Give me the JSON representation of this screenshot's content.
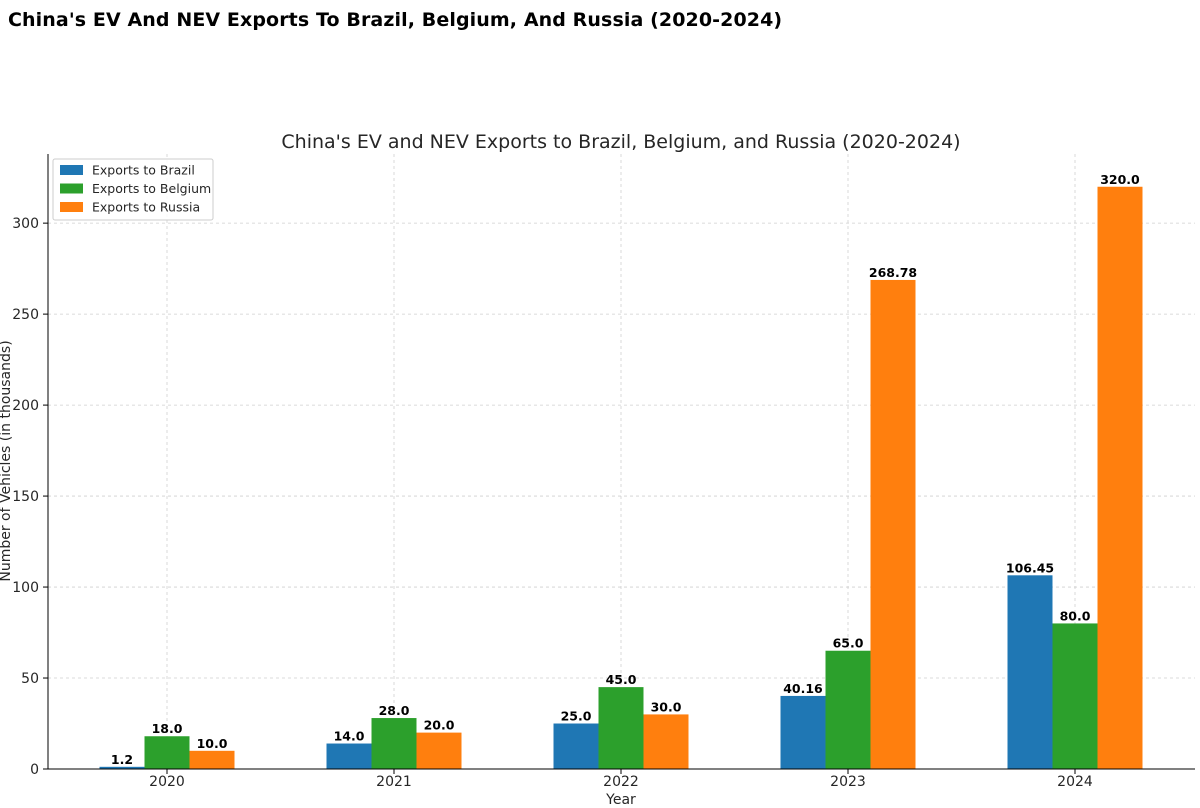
{
  "page": {
    "title": "China's EV And NEV Exports To Brazil, Belgium, And Russia (2020-2024)"
  },
  "chart_data": {
    "type": "bar",
    "title": "China's EV and NEV Exports to Brazil, Belgium, and Russia (2020-2024)",
    "xlabel": "Year",
    "ylabel": "Number of Vehicles (in thousands)",
    "categories": [
      "2020",
      "2021",
      "2022",
      "2023",
      "2024"
    ],
    "ylim": [
      0,
      338
    ],
    "yticks": [
      0,
      50,
      100,
      150,
      200,
      250,
      300
    ],
    "grid": true,
    "legend_position": "top-left",
    "series": [
      {
        "name": "Exports to Brazil",
        "color": "#1f77b4",
        "values": [
          1.2,
          14.0,
          25.0,
          40.16,
          106.45
        ],
        "labels": [
          "1.2",
          "14.0",
          "25.0",
          "40.16",
          "106.45"
        ]
      },
      {
        "name": "Exports to Belgium",
        "color": "#2ca02c",
        "values": [
          18.0,
          28.0,
          45.0,
          65.0,
          80.0
        ],
        "labels": [
          "18.0",
          "28.0",
          "45.0",
          "65.0",
          "80.0"
        ]
      },
      {
        "name": "Exports to Russia",
        "color": "#ff7f0e",
        "values": [
          10.0,
          20.0,
          30.0,
          268.78,
          320.0
        ],
        "labels": [
          "10.0",
          "20.0",
          "30.0",
          "268.78",
          "320.0"
        ]
      }
    ]
  }
}
